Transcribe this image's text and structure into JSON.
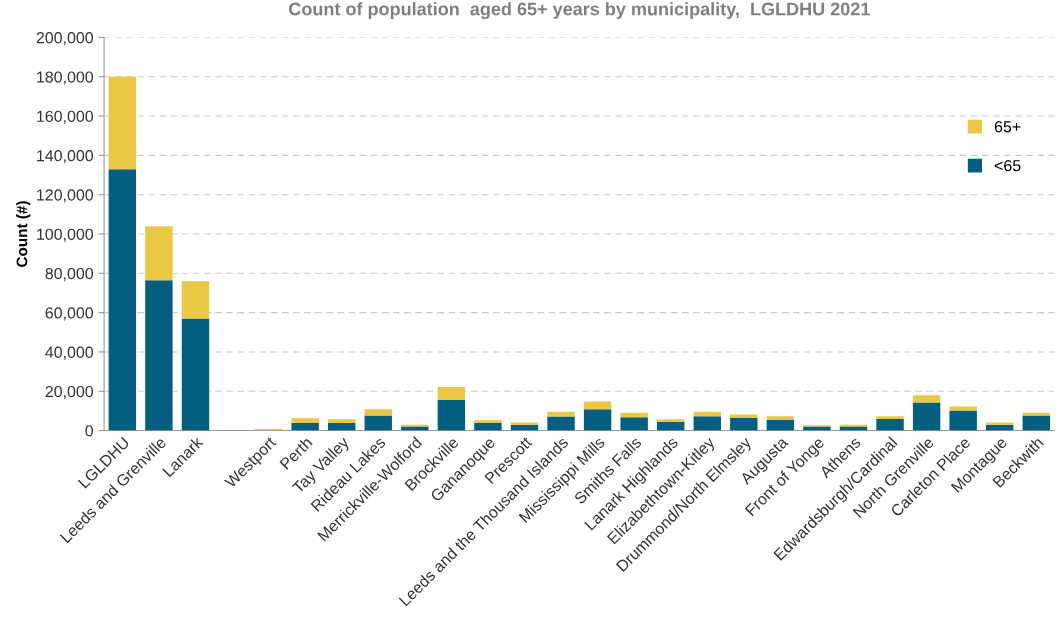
{
  "chart_data": {
    "type": "bar",
    "stacked": true,
    "title": "Count of population  aged 65+ years by municipality,  LGLDHU 2021",
    "ylabel": "Count (#)",
    "categories": [
      "LGLDHU",
      "Leeds and Grenville",
      "Lanark",
      null,
      "Westport",
      "Perth",
      "Tay Valley",
      "Rideau Lakes",
      "Merrickville-Wolford",
      "Brockville",
      "Gananoque",
      "Prescott",
      "Leeds and the Thousand Islands",
      "Mississippi Mills",
      "Smiths Falls",
      "Lanark Highlands",
      "Elizabethtown-Kitley",
      "Drummond/North Elmsley",
      "Augusta",
      "Front of Yonge",
      "Athens",
      "Edwardsburgh/Cardinal",
      "North Grenville",
      "Carleton Place",
      "Montague",
      "Beckwith"
    ],
    "series": [
      {
        "name": "<65",
        "color": "#045e7f",
        "values": [
          133000,
          76500,
          57000,
          null,
          null,
          3900,
          3900,
          7700,
          2100,
          15500,
          3900,
          3000,
          7100,
          10900,
          6800,
          4500,
          7300,
          6400,
          5400,
          2100,
          2100,
          5900,
          14300,
          10200,
          3000,
          7700
        ]
      },
      {
        "name": "65+",
        "color": "#ebc844",
        "values": [
          47000,
          27500,
          19000,
          null,
          800,
          2300,
          1800,
          3200,
          900,
          6600,
          1300,
          1100,
          2500,
          3900,
          2300,
          1200,
          2300,
          1800,
          1900,
          600,
          900,
          1400,
          3700,
          2100,
          1100,
          1400
        ]
      }
    ],
    "ylim": [
      0,
      200000
    ],
    "yticks": [
      {
        "value": 0,
        "label": "0"
      },
      {
        "value": 20000,
        "label": "20,000"
      },
      {
        "value": 40000,
        "label": "40,000"
      },
      {
        "value": 60000,
        "label": "60,000"
      },
      {
        "value": 80000,
        "label": "80,000"
      },
      {
        "value": 100000,
        "label": "100,000"
      },
      {
        "value": 120000,
        "label": "120,000"
      },
      {
        "value": 140000,
        "label": "140,000"
      },
      {
        "value": 160000,
        "label": "160,000"
      },
      {
        "value": 180000,
        "label": "180,000"
      },
      {
        "value": 200000,
        "label": "200,000"
      }
    ],
    "grid": "y",
    "legend": "right"
  }
}
